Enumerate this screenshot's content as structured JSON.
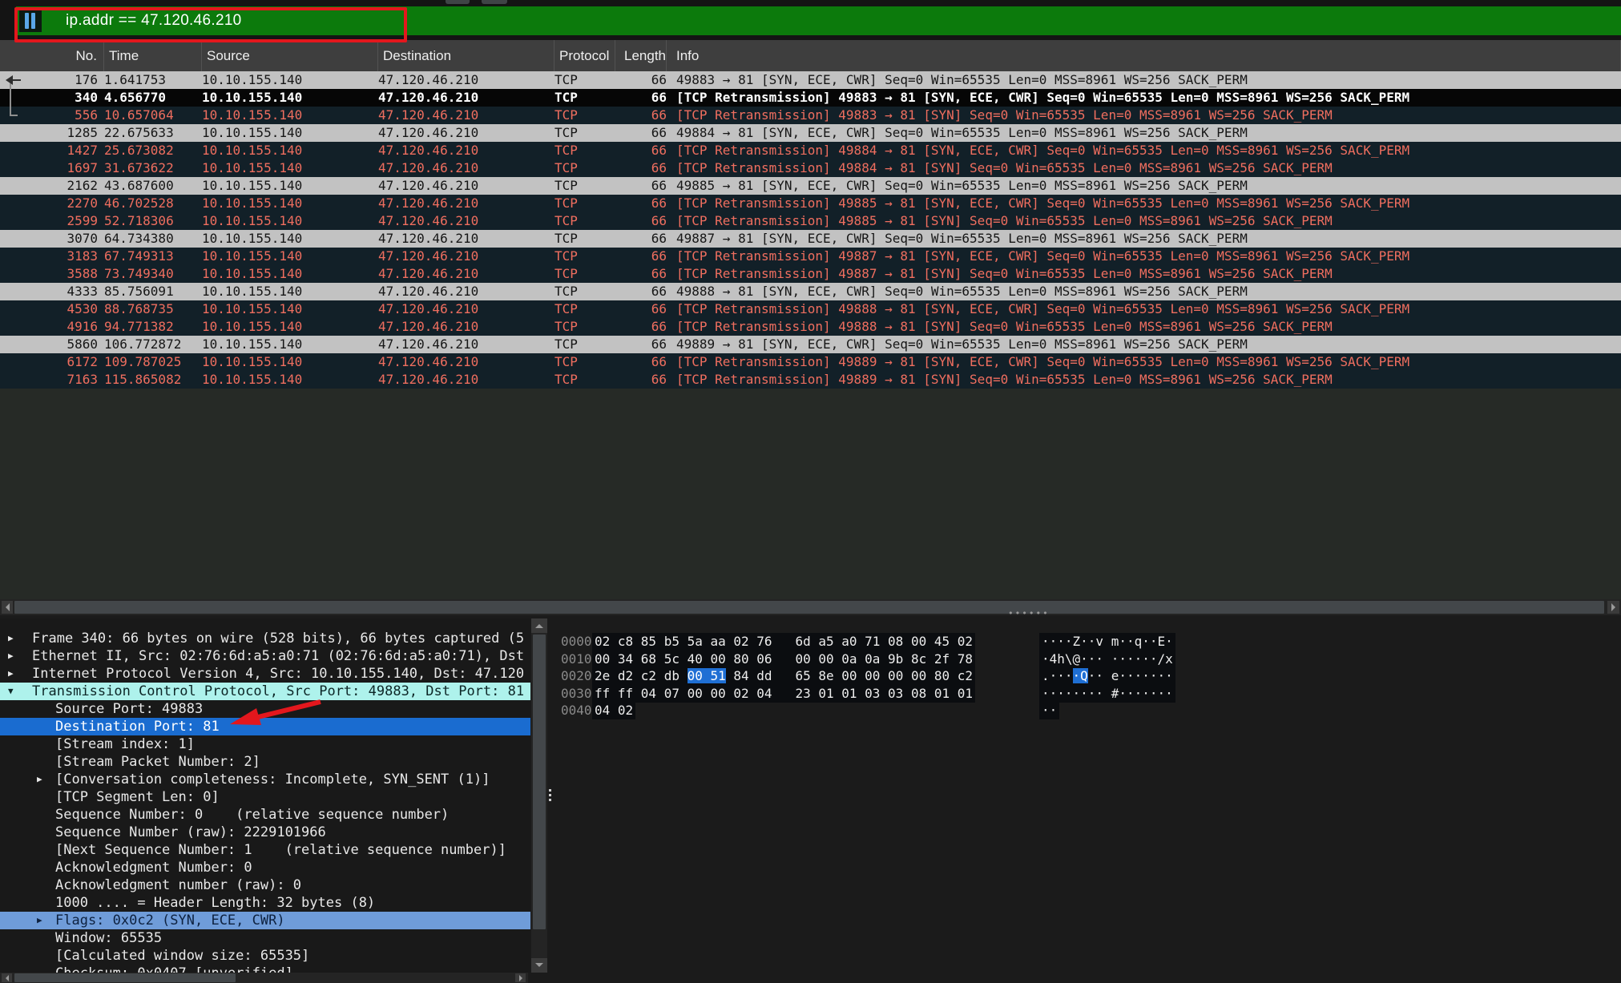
{
  "window": {
    "app": "Wireshark capture window"
  },
  "filter_bar": {
    "value": "ip.addr == 47.120.46.210",
    "icon": "filter-bookmark-icon"
  },
  "packet_list": {
    "columns": [
      "No.",
      "Time",
      "Source",
      "Destination",
      "Protocol",
      "Length",
      "Info"
    ],
    "rows": [
      {
        "no": "176",
        "time": "1.641753",
        "source": "10.10.155.140",
        "destination": "47.120.46.210",
        "protocol": "TCP",
        "length": "66",
        "info": "49883 → 81 [SYN, ECE, CWR] Seq=0 Win=65535 Len=0 MSS=8961 WS=256 SACK_PERM",
        "style": "gray"
      },
      {
        "no": "340",
        "time": "4.656770",
        "source": "10.10.155.140",
        "destination": "47.120.46.210",
        "protocol": "TCP",
        "length": "66",
        "info": "[TCP Retransmission] 49883 → 81 [SYN, ECE, CWR] Seq=0 Win=65535 Len=0 MSS=8961 WS=256 SACK_PERM",
        "style": "sel"
      },
      {
        "no": "556",
        "time": "10.657064",
        "source": "10.10.155.140",
        "destination": "47.120.46.210",
        "protocol": "TCP",
        "length": "66",
        "info": "[TCP Retransmission] 49883 → 81 [SYN] Seq=0 Win=65535 Len=0 MSS=8961 WS=256 SACK_PERM",
        "style": "bad"
      },
      {
        "no": "1285",
        "time": "22.675633",
        "source": "10.10.155.140",
        "destination": "47.120.46.210",
        "protocol": "TCP",
        "length": "66",
        "info": "49884 → 81 [SYN, ECE, CWR] Seq=0 Win=65535 Len=0 MSS=8961 WS=256 SACK_PERM",
        "style": "gray"
      },
      {
        "no": "1427",
        "time": "25.673082",
        "source": "10.10.155.140",
        "destination": "47.120.46.210",
        "protocol": "TCP",
        "length": "66",
        "info": "[TCP Retransmission] 49884 → 81 [SYN, ECE, CWR] Seq=0 Win=65535 Len=0 MSS=8961 WS=256 SACK_PERM",
        "style": "bad"
      },
      {
        "no": "1697",
        "time": "31.673622",
        "source": "10.10.155.140",
        "destination": "47.120.46.210",
        "protocol": "TCP",
        "length": "66",
        "info": "[TCP Retransmission] 49884 → 81 [SYN] Seq=0 Win=65535 Len=0 MSS=8961 WS=256 SACK_PERM",
        "style": "bad"
      },
      {
        "no": "2162",
        "time": "43.687600",
        "source": "10.10.155.140",
        "destination": "47.120.46.210",
        "protocol": "TCP",
        "length": "66",
        "info": "49885 → 81 [SYN, ECE, CWR] Seq=0 Win=65535 Len=0 MSS=8961 WS=256 SACK_PERM",
        "style": "gray"
      },
      {
        "no": "2270",
        "time": "46.702528",
        "source": "10.10.155.140",
        "destination": "47.120.46.210",
        "protocol": "TCP",
        "length": "66",
        "info": "[TCP Retransmission] 49885 → 81 [SYN, ECE, CWR] Seq=0 Win=65535 Len=0 MSS=8961 WS=256 SACK_PERM",
        "style": "bad"
      },
      {
        "no": "2599",
        "time": "52.718306",
        "source": "10.10.155.140",
        "destination": "47.120.46.210",
        "protocol": "TCP",
        "length": "66",
        "info": "[TCP Retransmission] 49885 → 81 [SYN] Seq=0 Win=65535 Len=0 MSS=8961 WS=256 SACK_PERM",
        "style": "bad"
      },
      {
        "no": "3070",
        "time": "64.734380",
        "source": "10.10.155.140",
        "destination": "47.120.46.210",
        "protocol": "TCP",
        "length": "66",
        "info": "49887 → 81 [SYN, ECE, CWR] Seq=0 Win=65535 Len=0 MSS=8961 WS=256 SACK_PERM",
        "style": "gray"
      },
      {
        "no": "3183",
        "time": "67.749313",
        "source": "10.10.155.140",
        "destination": "47.120.46.210",
        "protocol": "TCP",
        "length": "66",
        "info": "[TCP Retransmission] 49887 → 81 [SYN, ECE, CWR] Seq=0 Win=65535 Len=0 MSS=8961 WS=256 SACK_PERM",
        "style": "bad"
      },
      {
        "no": "3588",
        "time": "73.749340",
        "source": "10.10.155.140",
        "destination": "47.120.46.210",
        "protocol": "TCP",
        "length": "66",
        "info": "[TCP Retransmission] 49887 → 81 [SYN] Seq=0 Win=65535 Len=0 MSS=8961 WS=256 SACK_PERM",
        "style": "bad"
      },
      {
        "no": "4333",
        "time": "85.756091",
        "source": "10.10.155.140",
        "destination": "47.120.46.210",
        "protocol": "TCP",
        "length": "66",
        "info": "49888 → 81 [SYN, ECE, CWR] Seq=0 Win=65535 Len=0 MSS=8961 WS=256 SACK_PERM",
        "style": "gray"
      },
      {
        "no": "4530",
        "time": "88.768735",
        "source": "10.10.155.140",
        "destination": "47.120.46.210",
        "protocol": "TCP",
        "length": "66",
        "info": "[TCP Retransmission] 49888 → 81 [SYN, ECE, CWR] Seq=0 Win=65535 Len=0 MSS=8961 WS=256 SACK_PERM",
        "style": "bad"
      },
      {
        "no": "4916",
        "time": "94.771382",
        "source": "10.10.155.140",
        "destination": "47.120.46.210",
        "protocol": "TCP",
        "length": "66",
        "info": "[TCP Retransmission] 49888 → 81 [SYN] Seq=0 Win=65535 Len=0 MSS=8961 WS=256 SACK_PERM",
        "style": "bad"
      },
      {
        "no": "5860",
        "time": "106.772872",
        "source": "10.10.155.140",
        "destination": "47.120.46.210",
        "protocol": "TCP",
        "length": "66",
        "info": "49889 → 81 [SYN, ECE, CWR] Seq=0 Win=65535 Len=0 MSS=8961 WS=256 SACK_PERM",
        "style": "gray"
      },
      {
        "no": "6172",
        "time": "109.787025",
        "source": "10.10.155.140",
        "destination": "47.120.46.210",
        "protocol": "TCP",
        "length": "66",
        "info": "[TCP Retransmission] 49889 → 81 [SYN, ECE, CWR] Seq=0 Win=65535 Len=0 MSS=8961 WS=256 SACK_PERM",
        "style": "bad"
      },
      {
        "no": "7163",
        "time": "115.865082",
        "source": "10.10.155.140",
        "destination": "47.120.46.210",
        "protocol": "TCP",
        "length": "66",
        "info": "[TCP Retransmission] 49889 → 81 [SYN] Seq=0 Win=65535 Len=0 MSS=8961 WS=256 SACK_PERM",
        "style": "bad"
      }
    ]
  },
  "details": {
    "lines": [
      {
        "indent": 1,
        "expander": "collapsed",
        "text": "Frame 340: 66 bytes on wire (528 bits), 66 bytes captured (5",
        "highlight": null
      },
      {
        "indent": 1,
        "expander": "collapsed",
        "text": "Ethernet II, Src: 02:76:6d:a5:a0:71 (02:76:6d:a5:a0:71), Dst",
        "highlight": null
      },
      {
        "indent": 1,
        "expander": "collapsed",
        "text": "Internet Protocol Version 4, Src: 10.10.155.140, Dst: 47.120",
        "highlight": null
      },
      {
        "indent": 1,
        "expander": "expanded",
        "text": "Transmission Control Protocol, Src Port: 49883, Dst Port: 81",
        "highlight": "cyan"
      },
      {
        "indent": 2,
        "expander": null,
        "text": "Source Port: 49883",
        "highlight": null
      },
      {
        "indent": 2,
        "expander": null,
        "text": "Destination Port: 81",
        "highlight": "selected"
      },
      {
        "indent": 2,
        "expander": null,
        "text": "[Stream index: 1]",
        "highlight": null
      },
      {
        "indent": 2,
        "expander": null,
        "text": "[Stream Packet Number: 2]",
        "highlight": null
      },
      {
        "indent": 2,
        "expander": "collapsed",
        "text": "[Conversation completeness: Incomplete, SYN_SENT (1)]",
        "highlight": null
      },
      {
        "indent": 2,
        "expander": null,
        "text": "[TCP Segment Len: 0]",
        "highlight": null
      },
      {
        "indent": 2,
        "expander": null,
        "text": "Sequence Number: 0    (relative sequence number)",
        "highlight": null
      },
      {
        "indent": 2,
        "expander": null,
        "text": "Sequence Number (raw): 2229101966",
        "highlight": null
      },
      {
        "indent": 2,
        "expander": null,
        "text": "[Next Sequence Number: 1    (relative sequence number)]",
        "highlight": null
      },
      {
        "indent": 2,
        "expander": null,
        "text": "Acknowledgment Number: 0",
        "highlight": null
      },
      {
        "indent": 2,
        "expander": null,
        "text": "Acknowledgment number (raw): 0",
        "highlight": null
      },
      {
        "indent": 2,
        "expander": null,
        "text": "1000 .... = Header Length: 32 bytes (8)",
        "highlight": null
      },
      {
        "indent": 2,
        "expander": "collapsed",
        "text": "Flags: 0x0c2 (SYN, ECE, CWR)",
        "highlight": "flags"
      },
      {
        "indent": 2,
        "expander": null,
        "text": "Window: 65535",
        "highlight": null
      },
      {
        "indent": 2,
        "expander": null,
        "text": "[Calculated window size: 65535]",
        "highlight": null
      },
      {
        "indent": 2,
        "expander": null,
        "text": "Checksum: 0x0407 [unverified]",
        "highlight": null
      }
    ]
  },
  "hex_view": {
    "rows": [
      {
        "offset": "0000",
        "hex1": "02 c8 85 b5 5a aa 02 76",
        "hex2": "6d a5 a0 71 08 00 45 02",
        "ascii1": "····Z··v",
        "ascii2": "m··q··E·"
      },
      {
        "offset": "0010",
        "hex1": "00 34 68 5c 40 00 80 06",
        "hex2": "00 00 0a 0a 9b 8c 2f 78",
        "ascii1": "·4h\\@···",
        "ascii2": "······/x"
      },
      {
        "offset": "0020",
        "hex1_pre": "2e d2 c2 db ",
        "hex1_hl": "00 51",
        "hex1_post": " 84 dd",
        "hex2": "65 8e 00 00 00 00 80 c2",
        "ascii1_pre": ".···",
        "ascii1_hl": "·Q",
        "ascii1_post": "··",
        "ascii2": "e·······"
      },
      {
        "offset": "0030",
        "hex1": "ff ff 04 07 00 00 02 04",
        "hex2": "23 01 01 03 03 08 01 01",
        "ascii1": "········",
        "ascii2": "#·······"
      },
      {
        "offset": "0040",
        "hex1": "04 02",
        "hex2": "",
        "ascii1": "··",
        "ascii2": ""
      }
    ]
  },
  "colors": {
    "filter_green": "#0c7a0c",
    "annotation_red": "#e3171d",
    "selection_blue": "#1a6cd0",
    "tcp_row_cyan": "#aef2ec",
    "flags_row_blue": "#6f9cd9",
    "bad_tcp_text": "#ef6e5f",
    "bad_tcp_bg": "#122028",
    "hex_highlight_blue": "#1f6fd4"
  }
}
